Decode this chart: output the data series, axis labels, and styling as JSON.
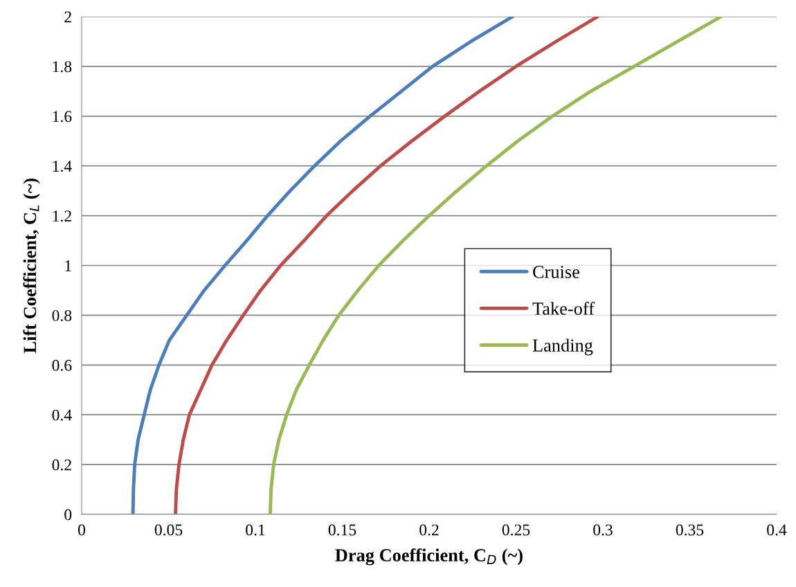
{
  "chart_data": {
    "type": "line",
    "xlabel": "Drag Coefficient, C$_{D}$ (~)",
    "ylabel": "Lift Coefficient, C$_{L}$ (~)",
    "xlim": [
      0,
      0.4
    ],
    "xticks": [
      0,
      0.05,
      0.1,
      0.15,
      0.2,
      0.25,
      0.3,
      0.35,
      0.4
    ],
    "ylim": [
      0,
      2
    ],
    "yticks": [
      0,
      0.2,
      0.4,
      0.6,
      0.8,
      1,
      1.2,
      1.4,
      1.6,
      1.8,
      2
    ],
    "grid": "y",
    "legend": "right",
    "marker": "none",
    "line_style": "solid",
    "series": [
      {
        "name": "Cruise",
        "color": "#4a7ebb",
        "x": [
          0.0295,
          0.0298,
          0.0305,
          0.0325,
          0.036,
          0.0395,
          0.0445,
          0.0505,
          0.0605,
          0.0705,
          0.0825,
          0.095,
          0.107,
          0.12,
          0.134,
          0.149,
          0.166,
          0.184,
          0.202,
          0.224,
          0.248
        ],
        "values": [
          0,
          0.1,
          0.2,
          0.3,
          0.4,
          0.5,
          0.6,
          0.7,
          0.8,
          0.9,
          1,
          1.1,
          1.2,
          1.3,
          1.4,
          1.5,
          1.6,
          1.7,
          1.8,
          1.9,
          2
        ]
      },
      {
        "name": "Take-off",
        "color": "#be4b48",
        "x": [
          0.054,
          0.0545,
          0.056,
          0.0585,
          0.062,
          0.0685,
          0.075,
          0.0835,
          0.093,
          0.103,
          0.1145,
          0.128,
          0.141,
          0.156,
          0.172,
          0.19,
          0.209,
          0.229,
          0.25,
          0.273,
          0.297
        ],
        "values": [
          0,
          0.1,
          0.2,
          0.3,
          0.4,
          0.5,
          0.6,
          0.7,
          0.8,
          0.9,
          1,
          1.1,
          1.2,
          1.3,
          1.4,
          1.5,
          1.6,
          1.7,
          1.8,
          1.9,
          2
        ]
      },
      {
        "name": "Landing",
        "color": "#98b954",
        "x": [
          0.1085,
          0.109,
          0.1105,
          0.1135,
          0.118,
          0.1235,
          0.131,
          0.139,
          0.148,
          0.159,
          0.171,
          0.185,
          0.2,
          0.216,
          0.233,
          0.251,
          0.271,
          0.293,
          0.318,
          0.343,
          0.368
        ],
        "values": [
          0,
          0.1,
          0.2,
          0.3,
          0.4,
          0.5,
          0.6,
          0.7,
          0.8,
          0.9,
          1,
          1.1,
          1.2,
          1.3,
          1.4,
          1.5,
          1.6,
          1.7,
          1.8,
          1.9,
          2
        ]
      }
    ]
  }
}
